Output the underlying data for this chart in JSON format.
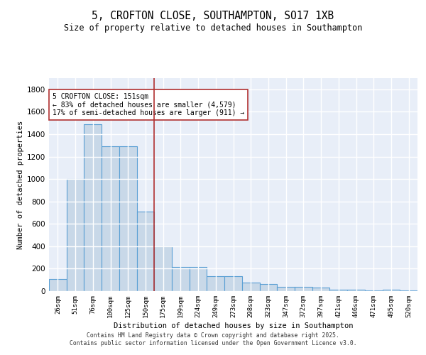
{
  "title": "5, CROFTON CLOSE, SOUTHAMPTON, SO17 1XB",
  "subtitle": "Size of property relative to detached houses in Southampton",
  "xlabel": "Distribution of detached houses by size in Southampton",
  "ylabel": "Number of detached properties",
  "categories": [
    "26sqm",
    "51sqm",
    "76sqm",
    "100sqm",
    "125sqm",
    "150sqm",
    "175sqm",
    "199sqm",
    "224sqm",
    "249sqm",
    "273sqm",
    "298sqm",
    "323sqm",
    "347sqm",
    "372sqm",
    "397sqm",
    "421sqm",
    "446sqm",
    "471sqm",
    "495sqm",
    "520sqm"
  ],
  "values": [
    105,
    1000,
    1490,
    1290,
    1290,
    710,
    400,
    215,
    215,
    130,
    130,
    75,
    65,
    40,
    35,
    30,
    15,
    10,
    5,
    15,
    5
  ],
  "bar_color": "#c8d8e8",
  "bar_edge_color": "#5a9fd4",
  "bar_linewidth": 0.8,
  "vline_x": 5.5,
  "vline_color": "#b03030",
  "vline_linewidth": 1.2,
  "annotation_text": "5 CROFTON CLOSE: 151sqm\n← 83% of detached houses are smaller (4,579)\n17% of semi-detached houses are larger (911) →",
  "annotation_box_color": "white",
  "annotation_box_edge": "#b03030",
  "ylim": [
    0,
    1900
  ],
  "yticks": [
    0,
    200,
    400,
    600,
    800,
    1000,
    1200,
    1400,
    1600,
    1800
  ],
  "bg_color": "#e8eef8",
  "grid_color": "white",
  "footer_line1": "Contains HM Land Registry data © Crown copyright and database right 2025.",
  "footer_line2": "Contains public sector information licensed under the Open Government Licence v3.0."
}
